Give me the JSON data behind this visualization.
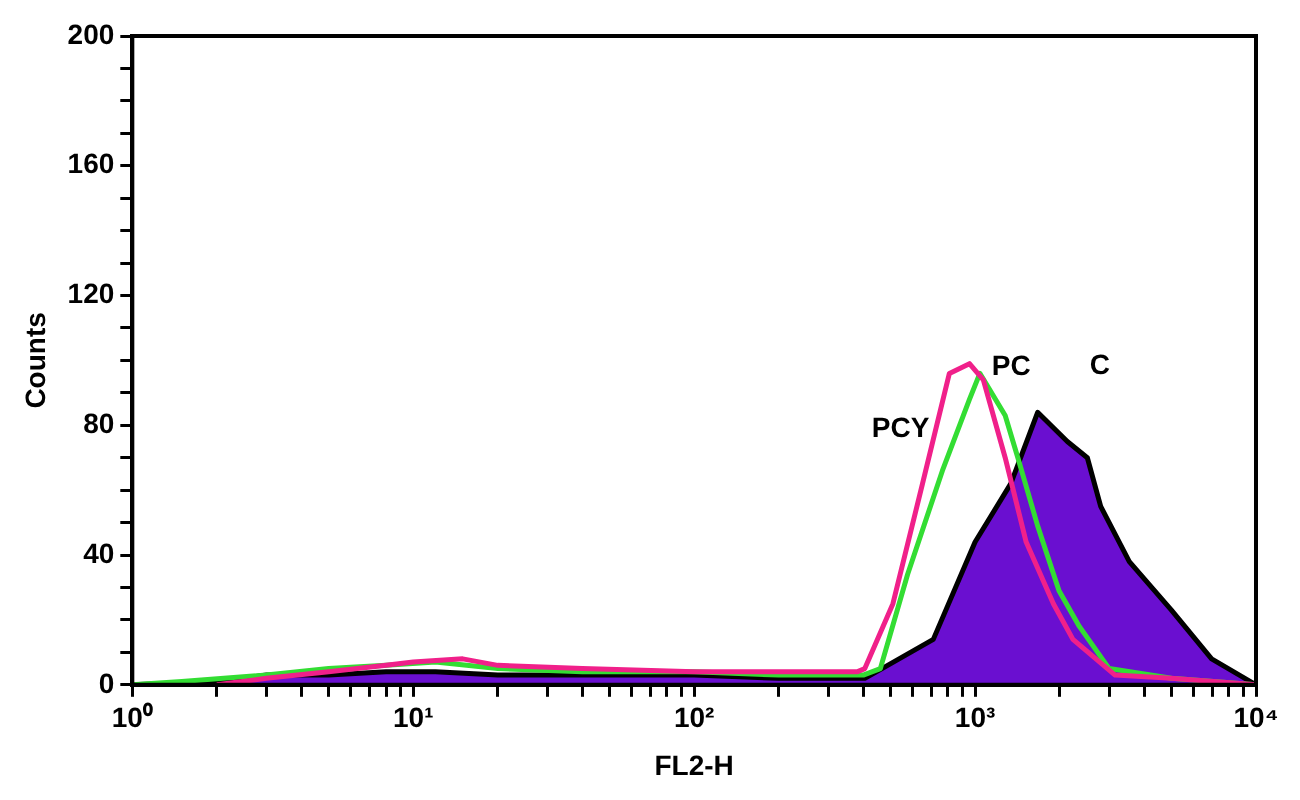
{
  "chart_data": {
    "type": "line",
    "xlabel": "FL2-H",
    "ylabel": "Counts",
    "log": "x",
    "grid": false,
    "legend": false,
    "marker": "none",
    "line_style": "solid",
    "xlim": [
      1,
      10000
    ],
    "xticks": [
      {
        "value": 1,
        "label": "10⁰"
      },
      {
        "value": 2,
        "label": null
      },
      {
        "value": 3,
        "label": null
      },
      {
        "value": 4,
        "label": null
      },
      {
        "value": 5,
        "label": null
      },
      {
        "value": 6,
        "label": null
      },
      {
        "value": 7,
        "label": null
      },
      {
        "value": 8,
        "label": null
      },
      {
        "value": 9,
        "label": null
      },
      {
        "value": 10,
        "label": "10¹"
      },
      {
        "value": 20,
        "label": null
      },
      {
        "value": 30,
        "label": null
      },
      {
        "value": 40,
        "label": null
      },
      {
        "value": 50,
        "label": null
      },
      {
        "value": 60,
        "label": null
      },
      {
        "value": 70,
        "label": null
      },
      {
        "value": 80,
        "label": null
      },
      {
        "value": 90,
        "label": null
      },
      {
        "value": 100,
        "label": "10²"
      },
      {
        "value": 200,
        "label": null
      },
      {
        "value": 300,
        "label": null
      },
      {
        "value": 400,
        "label": null
      },
      {
        "value": 500,
        "label": null
      },
      {
        "value": 600,
        "label": null
      },
      {
        "value": 700,
        "label": null
      },
      {
        "value": 800,
        "label": null
      },
      {
        "value": 900,
        "label": null
      },
      {
        "value": 1000,
        "label": "10³"
      },
      {
        "value": 2000,
        "label": null
      },
      {
        "value": 3000,
        "label": null
      },
      {
        "value": 4000,
        "label": null
      },
      {
        "value": 5000,
        "label": null
      },
      {
        "value": 6000,
        "label": null
      },
      {
        "value": 7000,
        "label": null
      },
      {
        "value": 8000,
        "label": null
      },
      {
        "value": 9000,
        "label": null
      },
      {
        "value": 10000,
        "label": "10⁴"
      }
    ],
    "ylim": [
      0,
      200
    ],
    "yticks": [
      0,
      {
        "value": 10,
        "label": null
      },
      {
        "value": 20,
        "label": null
      },
      {
        "value": 30,
        "label": null
      },
      40,
      {
        "value": 50,
        "label": null
      },
      {
        "value": 60,
        "label": null
      },
      {
        "value": 70,
        "label": null
      },
      80,
      {
        "value": 90,
        "label": null
      },
      {
        "value": 100,
        "label": null
      },
      {
        "value": 110,
        "label": null
      },
      120,
      {
        "value": 130,
        "label": null
      },
      {
        "value": 140,
        "label": null
      },
      {
        "value": 150,
        "label": null
      },
      160,
      {
        "value": 170,
        "label": null
      },
      {
        "value": 180,
        "label": null
      },
      {
        "value": 190,
        "label": null
      },
      200
    ],
    "series": [
      {
        "name": "C",
        "type": "area",
        "color": "#6a0fd0",
        "x": [
          1,
          2,
          3,
          5,
          8,
          12,
          20,
          40,
          100,
          200,
          405,
          710,
          1000,
          1340,
          1670,
          2130,
          2510,
          2800,
          3540,
          5000,
          6950,
          10000
        ],
        "values": [
          0,
          1,
          3,
          3,
          4,
          4,
          3,
          3,
          3,
          2,
          2,
          14,
          44,
          62,
          84,
          75,
          70,
          55,
          38,
          23,
          8,
          0
        ]
      },
      {
        "name": "PC",
        "type": "line",
        "color": "#33dd33",
        "x": [
          1,
          1.5,
          3,
          5,
          8,
          12,
          20,
          40,
          100,
          200,
          400,
          460,
          575,
          765,
          955,
          1040,
          1280,
          1420,
          1670,
          1990,
          2350,
          3000,
          5000,
          10000
        ],
        "values": [
          0,
          1,
          3,
          5,
          6,
          7,
          5,
          4,
          4,
          3,
          3,
          5,
          34,
          66,
          88,
          96,
          83,
          70,
          49,
          29,
          18,
          5,
          2,
          0
        ]
      },
      {
        "name": "PCY",
        "type": "line",
        "color": "#f0208a",
        "x": [
          2,
          3,
          5,
          8,
          10,
          15,
          20,
          40,
          100,
          200,
          380,
          405,
          510,
          650,
          810,
          955,
          1070,
          1280,
          1520,
          1900,
          2230,
          3150,
          5000,
          10000
        ],
        "values": [
          0,
          2,
          4,
          6,
          7,
          8,
          6,
          5,
          4,
          4,
          4,
          5,
          25,
          62,
          96,
          99,
          94,
          70,
          44,
          25,
          14,
          3,
          2,
          0
        ]
      }
    ]
  }
}
